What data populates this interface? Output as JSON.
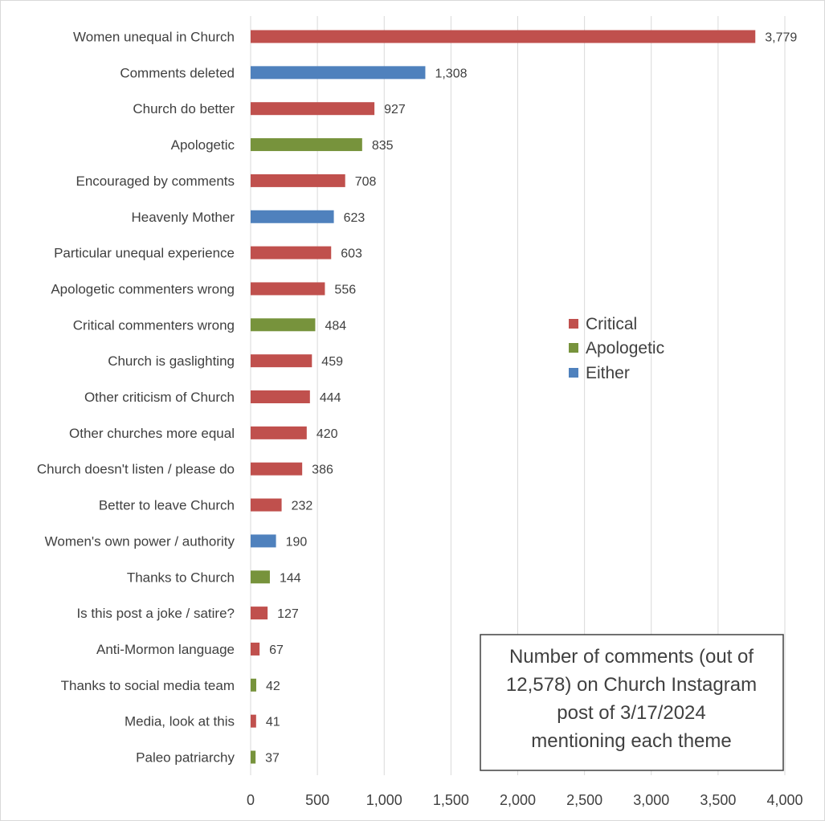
{
  "chart_data": {
    "type": "bar",
    "orientation": "horizontal",
    "categories": [
      "Women unequal in Church",
      "Comments deleted",
      "Church do better",
      "Apologetic",
      "Encouraged by comments",
      "Heavenly Mother",
      "Particular unequal experience",
      "Apologetic commenters wrong",
      "Critical commenters wrong",
      "Church is gaslighting",
      "Other criticism of Church",
      "Other churches more equal",
      "Church doesn't listen / please do",
      "Better to leave Church",
      "Women's own power / authority",
      "Thanks to Church",
      "Is this post a joke / satire?",
      "Anti-Mormon language",
      "Thanks to social media team",
      "Media, look at this",
      "Paleo patriarchy"
    ],
    "values": [
      3779,
      1308,
      927,
      835,
      708,
      623,
      603,
      556,
      484,
      459,
      444,
      420,
      386,
      232,
      190,
      144,
      127,
      67,
      42,
      41,
      37
    ],
    "value_labels": [
      "3,779",
      "1,308",
      "927",
      "835",
      "708",
      "623",
      "603",
      "556",
      "484",
      "459",
      "444",
      "420",
      "386",
      "232",
      "190",
      "144",
      "127",
      "67",
      "42",
      "41",
      "37"
    ],
    "groups": [
      "Critical",
      "Either",
      "Critical",
      "Apologetic",
      "Critical",
      "Either",
      "Critical",
      "Critical",
      "Apologetic",
      "Critical",
      "Critical",
      "Critical",
      "Critical",
      "Critical",
      "Either",
      "Apologetic",
      "Critical",
      "Critical",
      "Apologetic",
      "Critical",
      "Apologetic"
    ],
    "legend": [
      {
        "name": "Critical",
        "color": "#c0504d"
      },
      {
        "name": "Apologetic",
        "color": "#77933c"
      },
      {
        "name": "Either",
        "color": "#4f81bd"
      }
    ],
    "legend_placement": "center-right",
    "xlim": [
      0,
      4000
    ],
    "x_ticks": [
      0,
      500,
      1000,
      1500,
      2000,
      2500,
      3000,
      3500,
      4000
    ],
    "x_tick_labels": [
      "0",
      "500",
      "1,000",
      "1,500",
      "2,000",
      "2,500",
      "3,000",
      "3,500",
      "4,000"
    ],
    "grid": "vertical",
    "title": "",
    "xlabel": "",
    "ylabel": "",
    "annotation": [
      "Number of comments (out of",
      "12,578) on Church Instagram",
      "post of 3/17/2024",
      "mentioning each theme"
    ]
  },
  "colors": {
    "grid": "#d9d9d9",
    "text": "#404040",
    "note_border": "#404040"
  }
}
